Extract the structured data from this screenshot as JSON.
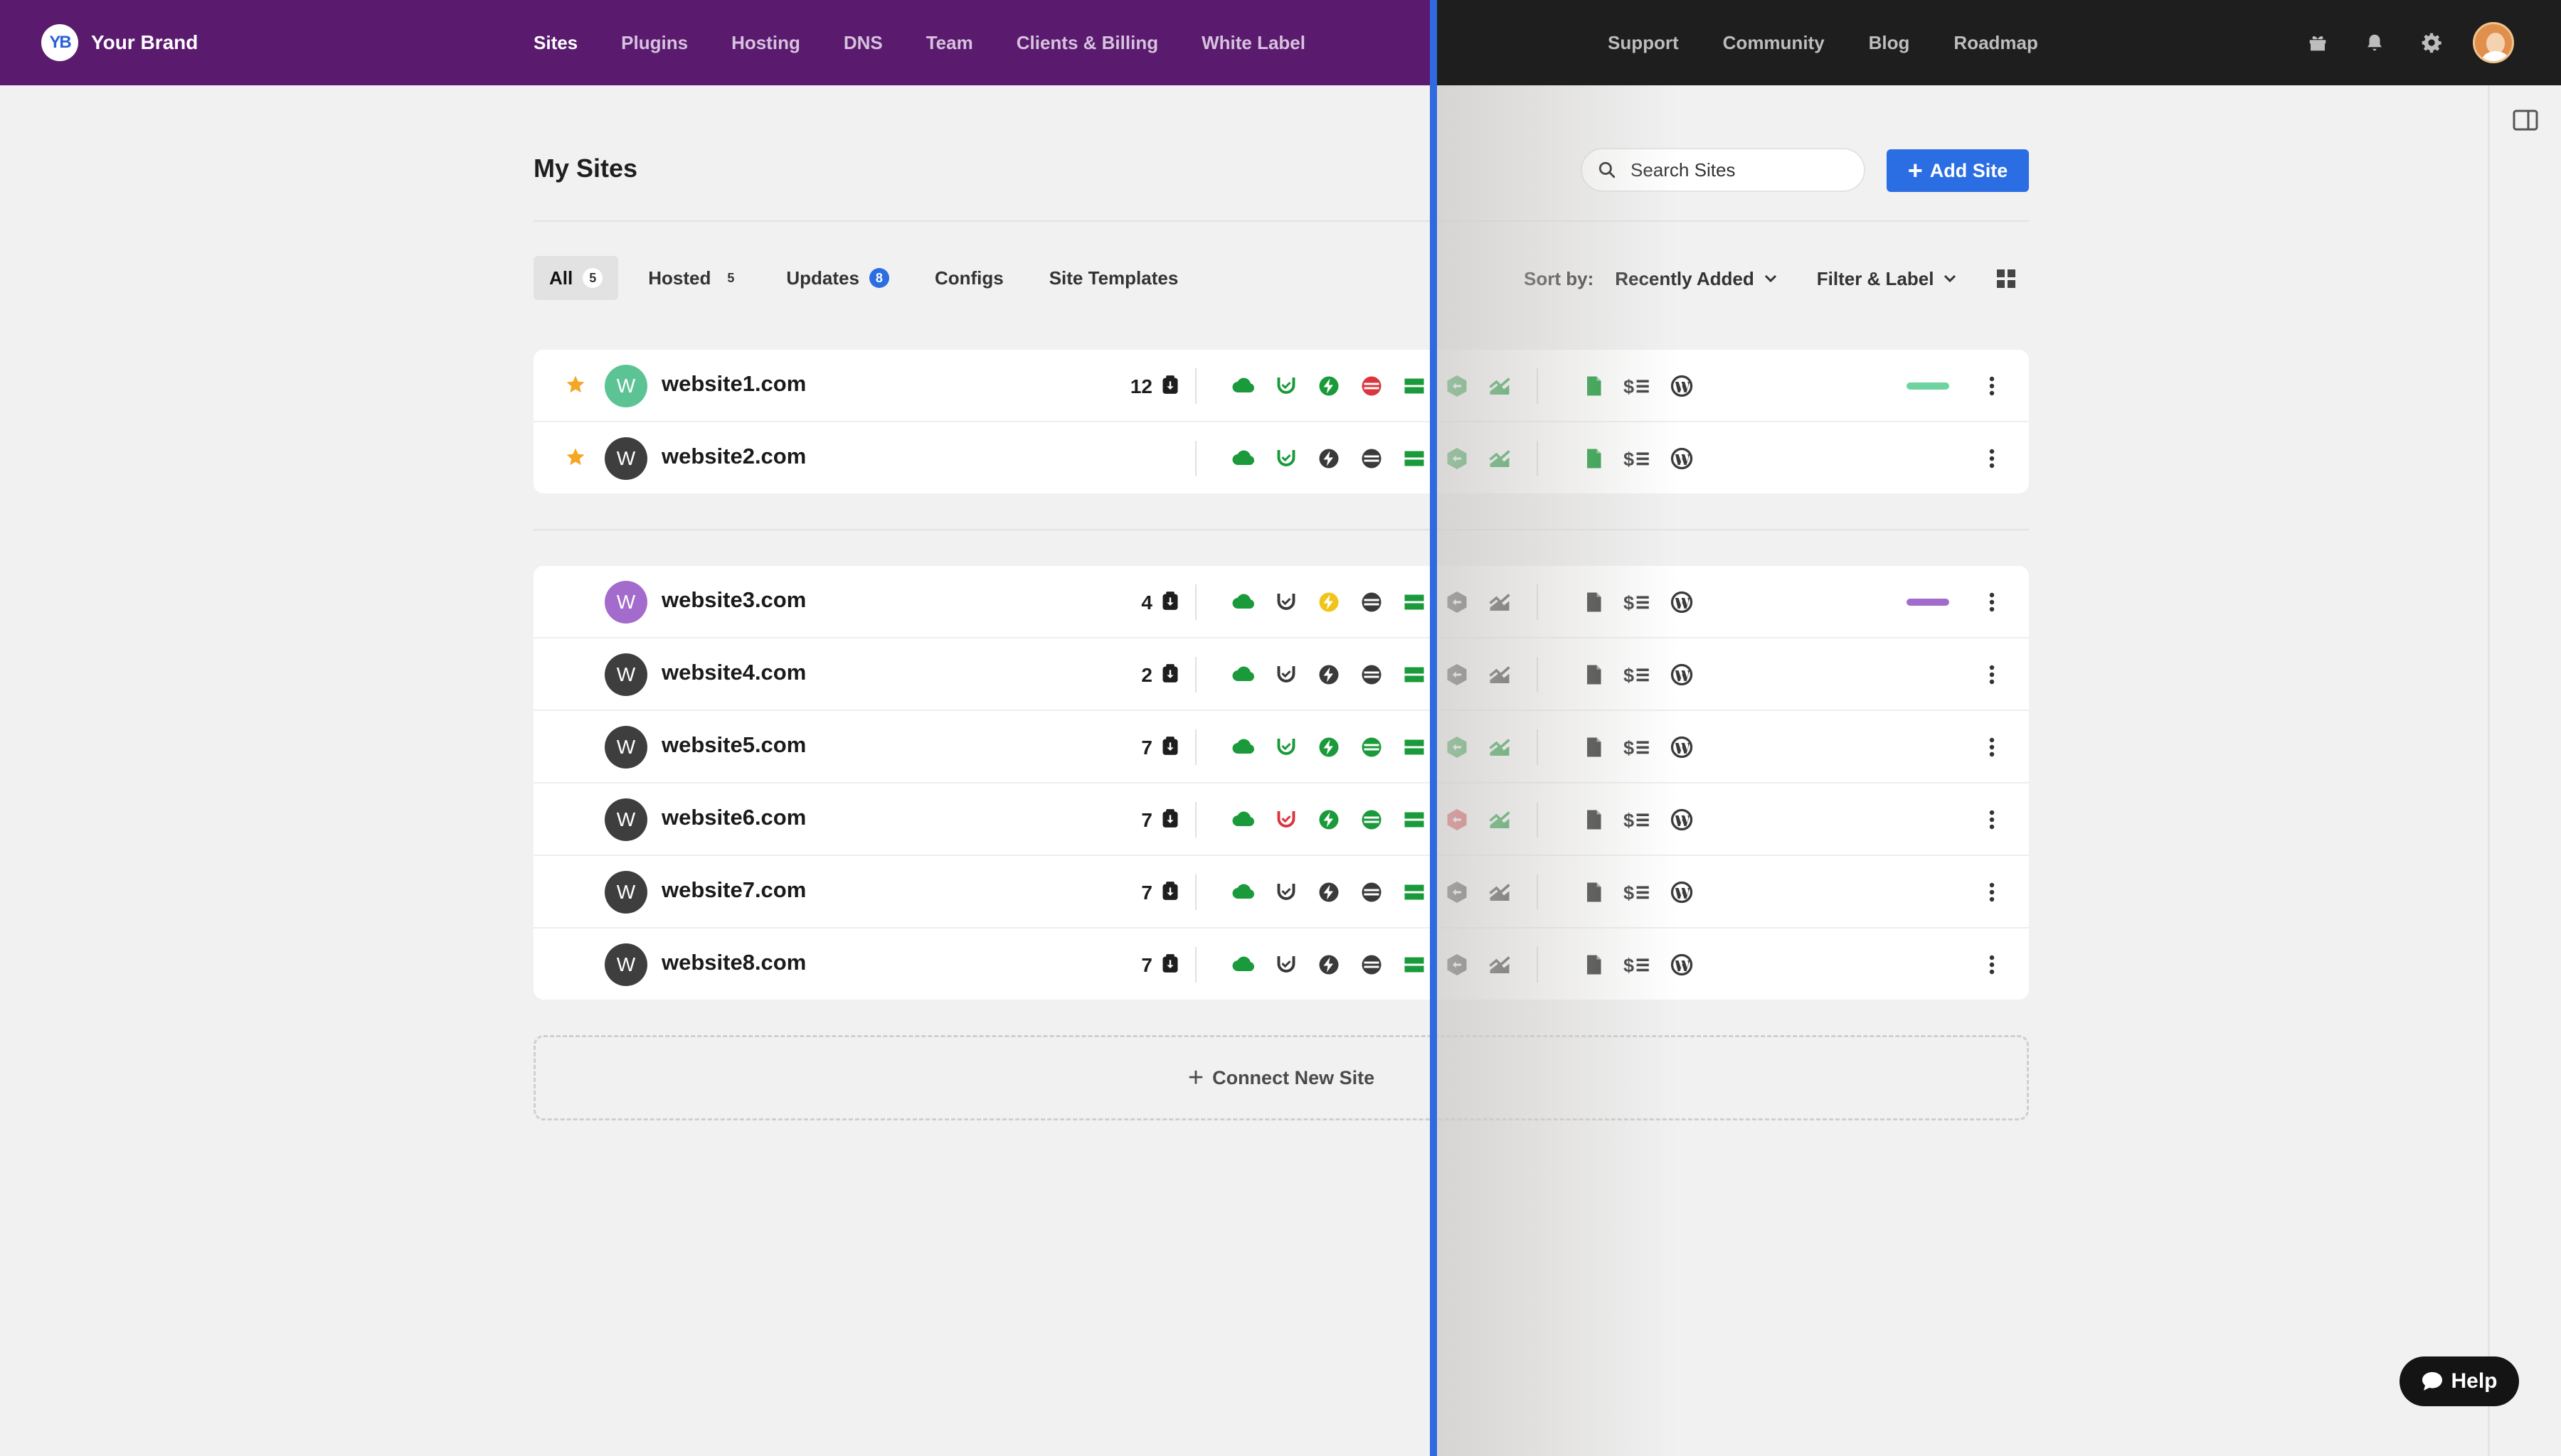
{
  "brand": {
    "logo_text": "YB",
    "name": "Your Brand"
  },
  "nav": {
    "main": [
      "Sites",
      "Plugins",
      "Hosting",
      "DNS",
      "Team",
      "Clients & Billing",
      "White Label"
    ],
    "active": "Sites",
    "right": [
      "Support",
      "Community",
      "Blog",
      "Roadmap"
    ]
  },
  "top_icons": [
    "gift-icon",
    "bell-icon",
    "gear-icon"
  ],
  "page": {
    "title": "My Sites",
    "search_placeholder": "Search Sites",
    "add_site_label": "Add Site"
  },
  "tabs": [
    {
      "label": "All",
      "count": "5",
      "active": true
    },
    {
      "label": "Hosted",
      "count": "5"
    },
    {
      "label": "Updates",
      "count": "8",
      "count_style": "blue"
    },
    {
      "label": "Configs"
    },
    {
      "label": "Site Templates"
    }
  ],
  "sort": {
    "label": "Sort by:",
    "value": "Recently Added",
    "filter_label": "Filter & Label"
  },
  "colors": {
    "green": "#1a9a3a",
    "dark": "#3a3a3a",
    "red": "#d9363e",
    "yellow": "#f0c419",
    "star": "#f5a623",
    "teal_avatar": "#5cc394",
    "purple_avatar": "#a36bcc"
  },
  "favorites": [
    {
      "name": "website1.com",
      "avatar": "W",
      "avatar_color": "#5cc394",
      "starred": true,
      "updates": "12",
      "status": [
        "green",
        "green",
        "green",
        "red",
        "green",
        "green",
        "green",
        "green",
        "dark",
        "dark"
      ],
      "label_color": "#6dd3a0"
    },
    {
      "name": "website2.com",
      "avatar": "W",
      "avatar_color": "#3e3e3e",
      "starred": true,
      "updates": "",
      "status": [
        "green",
        "green",
        "dark",
        "dark",
        "green",
        "green",
        "green",
        "green",
        "dark",
        "dark"
      ],
      "label_color": ""
    }
  ],
  "sites": [
    {
      "name": "website3.com",
      "avatar": "W",
      "avatar_color": "#a36bcc",
      "updates": "4",
      "status": [
        "green",
        "dark",
        "yellow",
        "dark",
        "green",
        "dark",
        "dark",
        "dark",
        "dark",
        "dark"
      ],
      "label_color": "#a36bcc"
    },
    {
      "name": "website4.com",
      "avatar": "W",
      "avatar_color": "#3e3e3e",
      "updates": "2",
      "status": [
        "green",
        "dark",
        "dark",
        "dark",
        "green",
        "dark",
        "dark",
        "dark",
        "dark",
        "dark"
      ],
      "label_color": ""
    },
    {
      "name": "website5.com",
      "avatar": "W",
      "avatar_color": "#3e3e3e",
      "updates": "7",
      "status": [
        "green",
        "green",
        "green",
        "green",
        "green",
        "green",
        "green",
        "dark",
        "dark",
        "dark"
      ],
      "label_color": ""
    },
    {
      "name": "website6.com",
      "avatar": "W",
      "avatar_color": "#3e3e3e",
      "updates": "7",
      "status": [
        "green",
        "red",
        "green",
        "green",
        "green",
        "red",
        "green",
        "dark",
        "dark",
        "dark"
      ],
      "label_color": ""
    },
    {
      "name": "website7.com",
      "avatar": "W",
      "avatar_color": "#3e3e3e",
      "updates": "7",
      "status": [
        "green",
        "dark",
        "dark",
        "dark",
        "green",
        "dark",
        "dark",
        "dark",
        "dark",
        "dark"
      ],
      "label_color": ""
    },
    {
      "name": "website8.com",
      "avatar": "W",
      "avatar_color": "#3e3e3e",
      "updates": "7",
      "status": [
        "green",
        "dark",
        "dark",
        "dark",
        "green",
        "dark",
        "dark",
        "dark",
        "dark",
        "dark"
      ],
      "label_color": ""
    }
  ],
  "row_icons": [
    "cloud-backup-icon",
    "security-shield-icon",
    "performance-icon",
    "uptime-icon",
    "hosting-server-icon",
    "cdn-icon",
    "analytics-icon",
    "notes-icon",
    "billing-icon",
    "wordpress-icon"
  ],
  "connect_label": "Connect New Site",
  "help_label": "Help"
}
